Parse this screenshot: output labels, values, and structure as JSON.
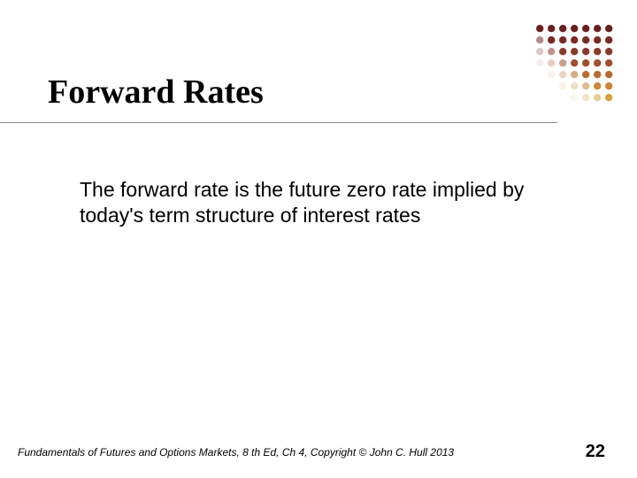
{
  "slide": {
    "title": "Forward Rates",
    "body": "The forward rate is the future zero rate implied by today's term structure of interest rates",
    "footer": "Fundamentals of Futures and Options Markets, 8 th Ed, Ch 4, Copyright © John C. Hull 2013",
    "page_number": "22"
  },
  "style": {
    "title_fontsize": 38,
    "title_color": "#000000",
    "title_font": "Times New Roman, serif",
    "body_fontsize": 23,
    "body_color": "#000000",
    "footer_fontsize": 12,
    "page_number_fontsize": 20,
    "underline_color": "#888888",
    "background_color": "#ffffff"
  },
  "decoration": {
    "type": "dot-grid-diagonal",
    "rows": 7,
    "cols": 7,
    "dot_radius": 4.2,
    "spacing": 13,
    "colors_by_diagonal": {
      "0": "#6b1f1f",
      "1": "#7a2a24",
      "2": "#8a3a2c",
      "3": "#a0502e",
      "4": "#b86a30",
      "5": "#c88836",
      "6": "#d6a23c"
    },
    "fade_steps": [
      "1.0",
      "0.55",
      "0.28",
      "0.10"
    ]
  }
}
